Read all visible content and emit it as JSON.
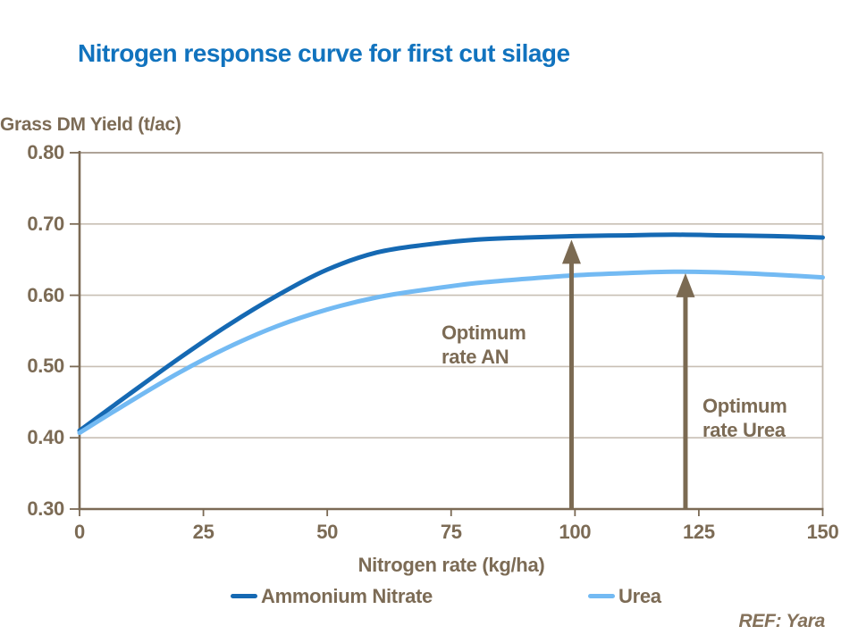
{
  "title": {
    "text": "Nitrogen response curve for first cut silage",
    "color": "#1173BE"
  },
  "chart_data": {
    "type": "line",
    "title": "Nitrogen response curve for first cut silage",
    "xlabel": "Nitrogen rate (kg/ha)",
    "ylabel": "Grass DM Yield (t/ac)",
    "xlim": [
      0,
      150
    ],
    "ylim": [
      0.3,
      0.8
    ],
    "x_ticks": [
      0,
      25,
      50,
      75,
      100,
      125,
      150
    ],
    "y_ticks": [
      0.8,
      0.7,
      0.6,
      0.5,
      0.4,
      0.3
    ],
    "y_tick_labels": [
      "0.80",
      "0.70",
      "0.60",
      "0.50",
      "0.40",
      "0.30"
    ],
    "grid": "horizontal",
    "legend_position": "bottom",
    "x": [
      0,
      10,
      20,
      30,
      40,
      50,
      60,
      70,
      80,
      90,
      100,
      110,
      120,
      130,
      140,
      150
    ],
    "series": [
      {
        "name": "Ammonium Nitrate",
        "color": "#1569B3",
        "values": [
          0.41,
          0.461,
          0.511,
          0.558,
          0.6,
          0.636,
          0.66,
          0.671,
          0.678,
          0.681,
          0.683,
          0.684,
          0.685,
          0.684,
          0.683,
          0.681
        ]
      },
      {
        "name": "Urea",
        "color": "#73BAF3",
        "values": [
          0.407,
          0.45,
          0.491,
          0.527,
          0.557,
          0.58,
          0.597,
          0.608,
          0.617,
          0.623,
          0.628,
          0.631,
          0.633,
          0.632,
          0.629,
          0.625
        ]
      }
    ],
    "annotations": [
      {
        "label": "Optimum rate AN",
        "arrow_x": 99.3,
        "arrow_tip_y": 0.678,
        "arrow_base_y": 0.3
      },
      {
        "label": "Optimum rate Urea",
        "arrow_x": 122.3,
        "arrow_tip_y": 0.631,
        "arrow_base_y": 0.3
      }
    ]
  },
  "labels": {
    "y_axis_title": "Grass DM Yield (t/ac)",
    "x_axis_title": "Nitrogen rate (kg/ha)",
    "annotation_an_line1": "Optimum",
    "annotation_an_line2": "rate AN",
    "annotation_urea_line1": "Optimum",
    "annotation_urea_line2": "rate Urea",
    "ref": "REF: Yara"
  },
  "legend": {
    "items": [
      {
        "label": "Ammonium Nitrate",
        "color": "#1569B3"
      },
      {
        "label": "Urea",
        "color": "#73BAF3"
      }
    ]
  },
  "colors": {
    "title_blue": "#1173BE",
    "text_brown": "#7C6B55",
    "axis": "#7B6A55",
    "gridline": "#C8BFB4",
    "frame_top": "#A2968A",
    "frame_right": "#BFB5A9",
    "arrow": "#7B6A52",
    "an_blue": "#1569B3",
    "urea_blue": "#73BAF3"
  }
}
